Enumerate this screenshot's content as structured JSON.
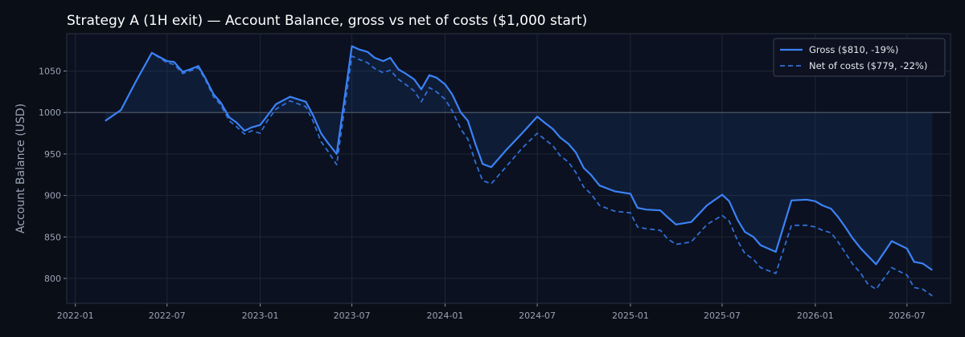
{
  "chart_data": {
    "type": "line",
    "title": "Strategy A (1H exit) — Account Balance, gross vs net of costs ($1,000 start)",
    "xlabel": "",
    "ylabel": "Account Balance (USD)",
    "xlim": [
      "2021-12-15",
      "2026-09-25"
    ],
    "ylim": [
      770,
      1095
    ],
    "x_ticks": [
      "2022-01",
      "2022-07",
      "2023-01",
      "2023-07",
      "2024-01",
      "2024-07",
      "2025-01",
      "2025-07",
      "2026-01",
      "2026-07"
    ],
    "y_ticks": [
      800,
      850,
      900,
      950,
      1000,
      1050
    ],
    "baseline": 1000,
    "grid": true,
    "legend_position": "top-right",
    "colors": {
      "background": "#0a0e17",
      "plot_background": "#0b1120",
      "grid": "#1f2633",
      "gross": "#3b82f6",
      "net": "#2f6fd6",
      "fill": "#1e3a6e",
      "baseline": "#4b5566"
    },
    "series": [
      {
        "name": "Gross ($810, -19%)",
        "style": "solid",
        "points": [
          [
            "2022-03-01",
            990
          ],
          [
            "2022-04-01",
            1003
          ],
          [
            "2022-05-01",
            1038
          ],
          [
            "2022-06-01",
            1072
          ],
          [
            "2022-07-01",
            1062
          ],
          [
            "2022-07-15",
            1061
          ],
          [
            "2022-08-01",
            1049
          ],
          [
            "2022-08-15",
            1052
          ],
          [
            "2022-09-01",
            1056
          ],
          [
            "2022-09-15",
            1041
          ],
          [
            "2022-10-01",
            1022
          ],
          [
            "2022-10-15",
            1012
          ],
          [
            "2022-11-01",
            994
          ],
          [
            "2022-11-15",
            988
          ],
          [
            "2022-12-01",
            978
          ],
          [
            "2022-12-15",
            982
          ],
          [
            "2023-01-01",
            985
          ],
          [
            "2023-01-15",
            996
          ],
          [
            "2023-02-01",
            1010
          ],
          [
            "2023-03-01",
            1019
          ],
          [
            "2023-04-01",
            1013
          ],
          [
            "2023-04-15",
            997
          ],
          [
            "2023-05-01",
            975
          ],
          [
            "2023-05-15",
            963
          ],
          [
            "2023-06-01",
            950
          ],
          [
            "2023-07-01",
            1080
          ],
          [
            "2023-07-15",
            1076
          ],
          [
            "2023-08-01",
            1073
          ],
          [
            "2023-08-15",
            1066
          ],
          [
            "2023-09-01",
            1062
          ],
          [
            "2023-09-15",
            1066
          ],
          [
            "2023-10-01",
            1052
          ],
          [
            "2023-10-15",
            1047
          ],
          [
            "2023-11-01",
            1040
          ],
          [
            "2023-11-15",
            1028
          ],
          [
            "2023-12-01",
            1045
          ],
          [
            "2023-12-15",
            1042
          ],
          [
            "2024-01-01",
            1034
          ],
          [
            "2024-01-15",
            1022
          ],
          [
            "2024-02-01",
            1000
          ],
          [
            "2024-02-15",
            990
          ],
          [
            "2024-03-01",
            962
          ],
          [
            "2024-03-15",
            938
          ],
          [
            "2024-04-01",
            934
          ],
          [
            "2024-05-01",
            955
          ],
          [
            "2024-06-01",
            975
          ],
          [
            "2024-07-01",
            995
          ],
          [
            "2024-07-15",
            988
          ],
          [
            "2024-08-01",
            980
          ],
          [
            "2024-08-15",
            970
          ],
          [
            "2024-09-01",
            962
          ],
          [
            "2024-09-15",
            952
          ],
          [
            "2024-10-01",
            933
          ],
          [
            "2024-10-15",
            925
          ],
          [
            "2024-11-01",
            912
          ],
          [
            "2024-12-01",
            905
          ],
          [
            "2025-01-01",
            902
          ],
          [
            "2025-01-15",
            885
          ],
          [
            "2025-02-01",
            883
          ],
          [
            "2025-03-01",
            882
          ],
          [
            "2025-03-15",
            874
          ],
          [
            "2025-04-01",
            865
          ],
          [
            "2025-05-01",
            868
          ],
          [
            "2025-06-01",
            888
          ],
          [
            "2025-07-01",
            901
          ],
          [
            "2025-07-15",
            893
          ],
          [
            "2025-08-01",
            870
          ],
          [
            "2025-08-15",
            856
          ],
          [
            "2025-09-01",
            850
          ],
          [
            "2025-09-15",
            840
          ],
          [
            "2025-10-15",
            832
          ],
          [
            "2025-11-15",
            894
          ],
          [
            "2025-12-15",
            895
          ],
          [
            "2026-01-01",
            893
          ],
          [
            "2026-01-15",
            888
          ],
          [
            "2026-02-01",
            884
          ],
          [
            "2026-02-15",
            874
          ],
          [
            "2026-03-01",
            862
          ],
          [
            "2026-03-15",
            849
          ],
          [
            "2026-04-01",
            836
          ],
          [
            "2026-05-01",
            817
          ],
          [
            "2026-06-01",
            845
          ],
          [
            "2026-07-01",
            836
          ],
          [
            "2026-07-15",
            820
          ],
          [
            "2026-08-01",
            818
          ],
          [
            "2026-08-20",
            810
          ]
        ]
      },
      {
        "name": "Net of costs ($779, -22%)",
        "style": "dashed",
        "points": [
          [
            "2022-03-01",
            990
          ],
          [
            "2022-04-01",
            1003
          ],
          [
            "2022-05-01",
            1038
          ],
          [
            "2022-06-01",
            1072
          ],
          [
            "2022-07-01",
            1060
          ],
          [
            "2022-07-15",
            1058
          ],
          [
            "2022-08-01",
            1047
          ],
          [
            "2022-08-15",
            1050
          ],
          [
            "2022-09-01",
            1054
          ],
          [
            "2022-09-15",
            1039
          ],
          [
            "2022-10-01",
            1019
          ],
          [
            "2022-10-15",
            1009
          ],
          [
            "2022-11-01",
            990
          ],
          [
            "2022-11-15",
            983
          ],
          [
            "2022-12-01",
            974
          ],
          [
            "2022-12-15",
            978
          ],
          [
            "2023-01-01",
            975
          ],
          [
            "2023-01-15",
            990
          ],
          [
            "2023-02-01",
            1004
          ],
          [
            "2023-03-01",
            1014
          ],
          [
            "2023-04-01",
            1007
          ],
          [
            "2023-04-15",
            990
          ],
          [
            "2023-05-01",
            965
          ],
          [
            "2023-05-15",
            953
          ],
          [
            "2023-06-01",
            937
          ],
          [
            "2023-07-01",
            1068
          ],
          [
            "2023-07-15",
            1064
          ],
          [
            "2023-08-01",
            1060
          ],
          [
            "2023-08-15",
            1053
          ],
          [
            "2023-09-01",
            1048
          ],
          [
            "2023-09-15",
            1051
          ],
          [
            "2023-10-01",
            1040
          ],
          [
            "2023-10-15",
            1034
          ],
          [
            "2023-11-01",
            1026
          ],
          [
            "2023-11-15",
            1013
          ],
          [
            "2023-12-01",
            1030
          ],
          [
            "2023-12-15",
            1025
          ],
          [
            "2024-01-01",
            1016
          ],
          [
            "2024-01-15",
            1002
          ],
          [
            "2024-02-01",
            980
          ],
          [
            "2024-02-15",
            968
          ],
          [
            "2024-03-01",
            940
          ],
          [
            "2024-03-15",
            918
          ],
          [
            "2024-04-01",
            914
          ],
          [
            "2024-05-01",
            935
          ],
          [
            "2024-06-01",
            957
          ],
          [
            "2024-07-01",
            975
          ],
          [
            "2024-07-15",
            968
          ],
          [
            "2024-08-01",
            960
          ],
          [
            "2024-08-15",
            948
          ],
          [
            "2024-09-01",
            940
          ],
          [
            "2024-09-15",
            928
          ],
          [
            "2024-10-01",
            910
          ],
          [
            "2024-10-15",
            902
          ],
          [
            "2024-11-01",
            888
          ],
          [
            "2024-12-01",
            881
          ],
          [
            "2025-01-01",
            879
          ],
          [
            "2025-01-15",
            862
          ],
          [
            "2025-02-01",
            860
          ],
          [
            "2025-03-01",
            858
          ],
          [
            "2025-03-15",
            848
          ],
          [
            "2025-04-01",
            841
          ],
          [
            "2025-05-01",
            844
          ],
          [
            "2025-06-01",
            865
          ],
          [
            "2025-07-01",
            876
          ],
          [
            "2025-07-15",
            869
          ],
          [
            "2025-08-01",
            845
          ],
          [
            "2025-08-15",
            830
          ],
          [
            "2025-09-01",
            823
          ],
          [
            "2025-09-15",
            813
          ],
          [
            "2025-10-15",
            806
          ],
          [
            "2025-11-15",
            864
          ],
          [
            "2025-12-15",
            864
          ],
          [
            "2026-01-01",
            862
          ],
          [
            "2026-01-15",
            858
          ],
          [
            "2026-02-01",
            855
          ],
          [
            "2026-02-15",
            844
          ],
          [
            "2026-03-01",
            831
          ],
          [
            "2026-03-15",
            818
          ],
          [
            "2026-04-01",
            806
          ],
          [
            "2026-04-15",
            793
          ],
          [
            "2026-05-01",
            787
          ],
          [
            "2026-06-01",
            813
          ],
          [
            "2026-07-01",
            804
          ],
          [
            "2026-07-15",
            789
          ],
          [
            "2026-08-01",
            787
          ],
          [
            "2026-08-20",
            779
          ]
        ]
      }
    ]
  }
}
